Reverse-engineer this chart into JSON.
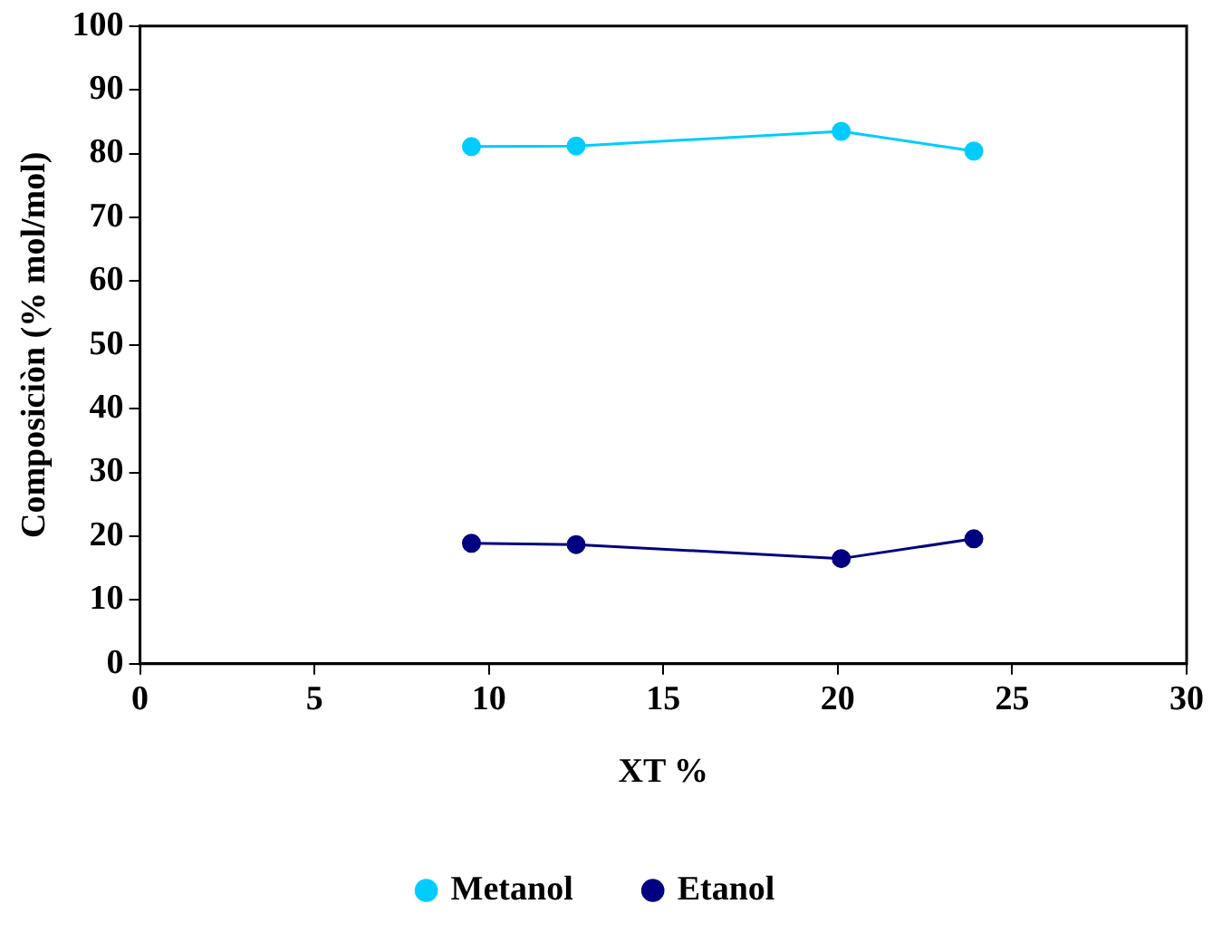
{
  "chart_data": {
    "type": "line",
    "xlabel": "XT %",
    "ylabel": "Composiciòn (% mol/mol)",
    "x": [
      9.5,
      12.5,
      20.1,
      23.9
    ],
    "series": [
      {
        "name": "Metanol",
        "color": "#00ccff",
        "values": [
          81.1,
          81.2,
          83.5,
          80.4
        ]
      },
      {
        "name": "Etanol",
        "color": "#000080",
        "values": [
          18.9,
          18.7,
          16.5,
          19.6
        ]
      }
    ],
    "xlim": [
      0,
      30
    ],
    "xticks": [
      0,
      5,
      10,
      15,
      20,
      25,
      30
    ],
    "ylim": [
      0,
      100
    ],
    "yticks": [
      0,
      10,
      20,
      30,
      40,
      50,
      60,
      70,
      80,
      90,
      100
    ],
    "grid": false,
    "legend": "bottom",
    "marker": "circle",
    "line_style": "solid"
  }
}
